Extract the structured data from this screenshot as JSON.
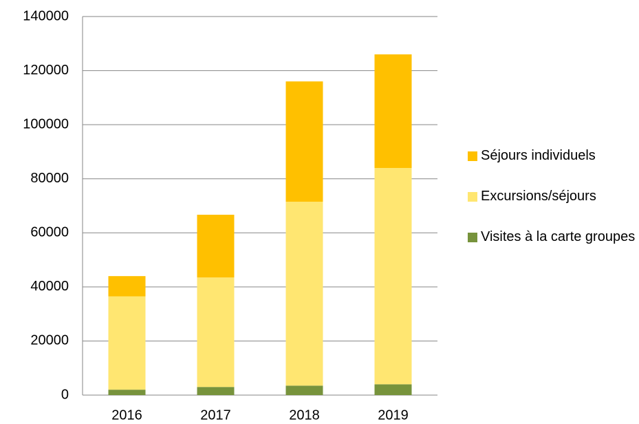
{
  "chart_data": {
    "type": "bar",
    "stacked": true,
    "categories": [
      "2016",
      "2017",
      "2018",
      "2019"
    ],
    "series": [
      {
        "name": "Visites à la carte groupes",
        "color": "#77933c",
        "values": [
          2000,
          3000,
          3500,
          4000
        ]
      },
      {
        "name": "Excursions/séjours",
        "color": "#ffe671",
        "values": [
          34500,
          40500,
          68000,
          80000
        ]
      },
      {
        "name": "Séjours individuels",
        "color": "#ffc000",
        "values": [
          7500,
          23200,
          44500,
          42000
        ]
      }
    ],
    "ylim": [
      0,
      140000
    ],
    "yticks": [
      0,
      20000,
      40000,
      60000,
      80000,
      100000,
      120000,
      140000
    ],
    "grid": true,
    "legend": "right"
  }
}
